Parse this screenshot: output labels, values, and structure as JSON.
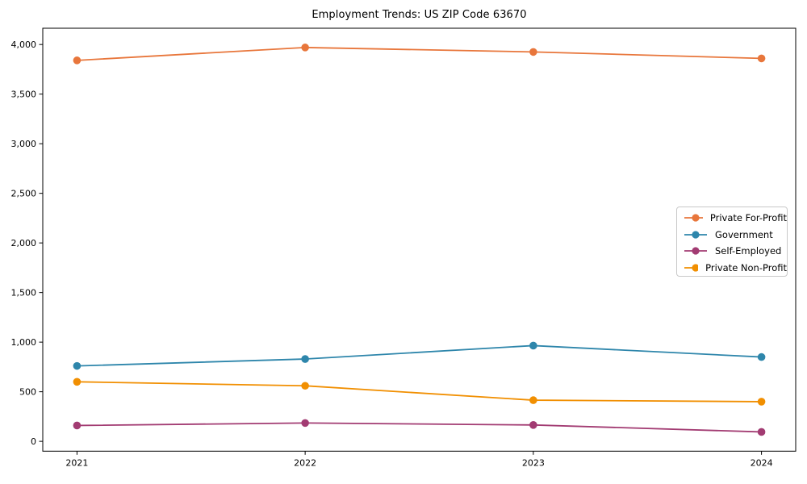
{
  "chart_data": {
    "type": "line",
    "title": "Employment Trends: US ZIP Code 63670",
    "xlabel": "",
    "ylabel": "",
    "x": [
      2021,
      2022,
      2023,
      2024
    ],
    "x_tick_labels": [
      "2021",
      "2022",
      "2023",
      "2024"
    ],
    "y_tick_values": [
      0,
      500,
      1000,
      1500,
      2000,
      2500,
      3000,
      3500,
      4000
    ],
    "y_tick_labels": [
      "0",
      "500",
      "1,000",
      "1,500",
      "2,000",
      "2,500",
      "3,000",
      "3,500",
      "4,000"
    ],
    "xlim": [
      2020.85,
      2024.15
    ],
    "ylim": [
      -99,
      4164
    ],
    "grid": false,
    "legend_position": "center-right",
    "series": [
      {
        "name": "Private For-Profit",
        "color": "#E8763B",
        "values": [
          3840,
          3970,
          3925,
          3860
        ]
      },
      {
        "name": "Government",
        "color": "#2E86AB",
        "values": [
          760,
          830,
          965,
          850
        ]
      },
      {
        "name": "Self-Employed",
        "color": "#A23B72",
        "values": [
          160,
          185,
          165,
          95
        ]
      },
      {
        "name": "Private Non-Profit",
        "color": "#F18F01",
        "values": [
          600,
          560,
          415,
          400
        ]
      }
    ]
  }
}
